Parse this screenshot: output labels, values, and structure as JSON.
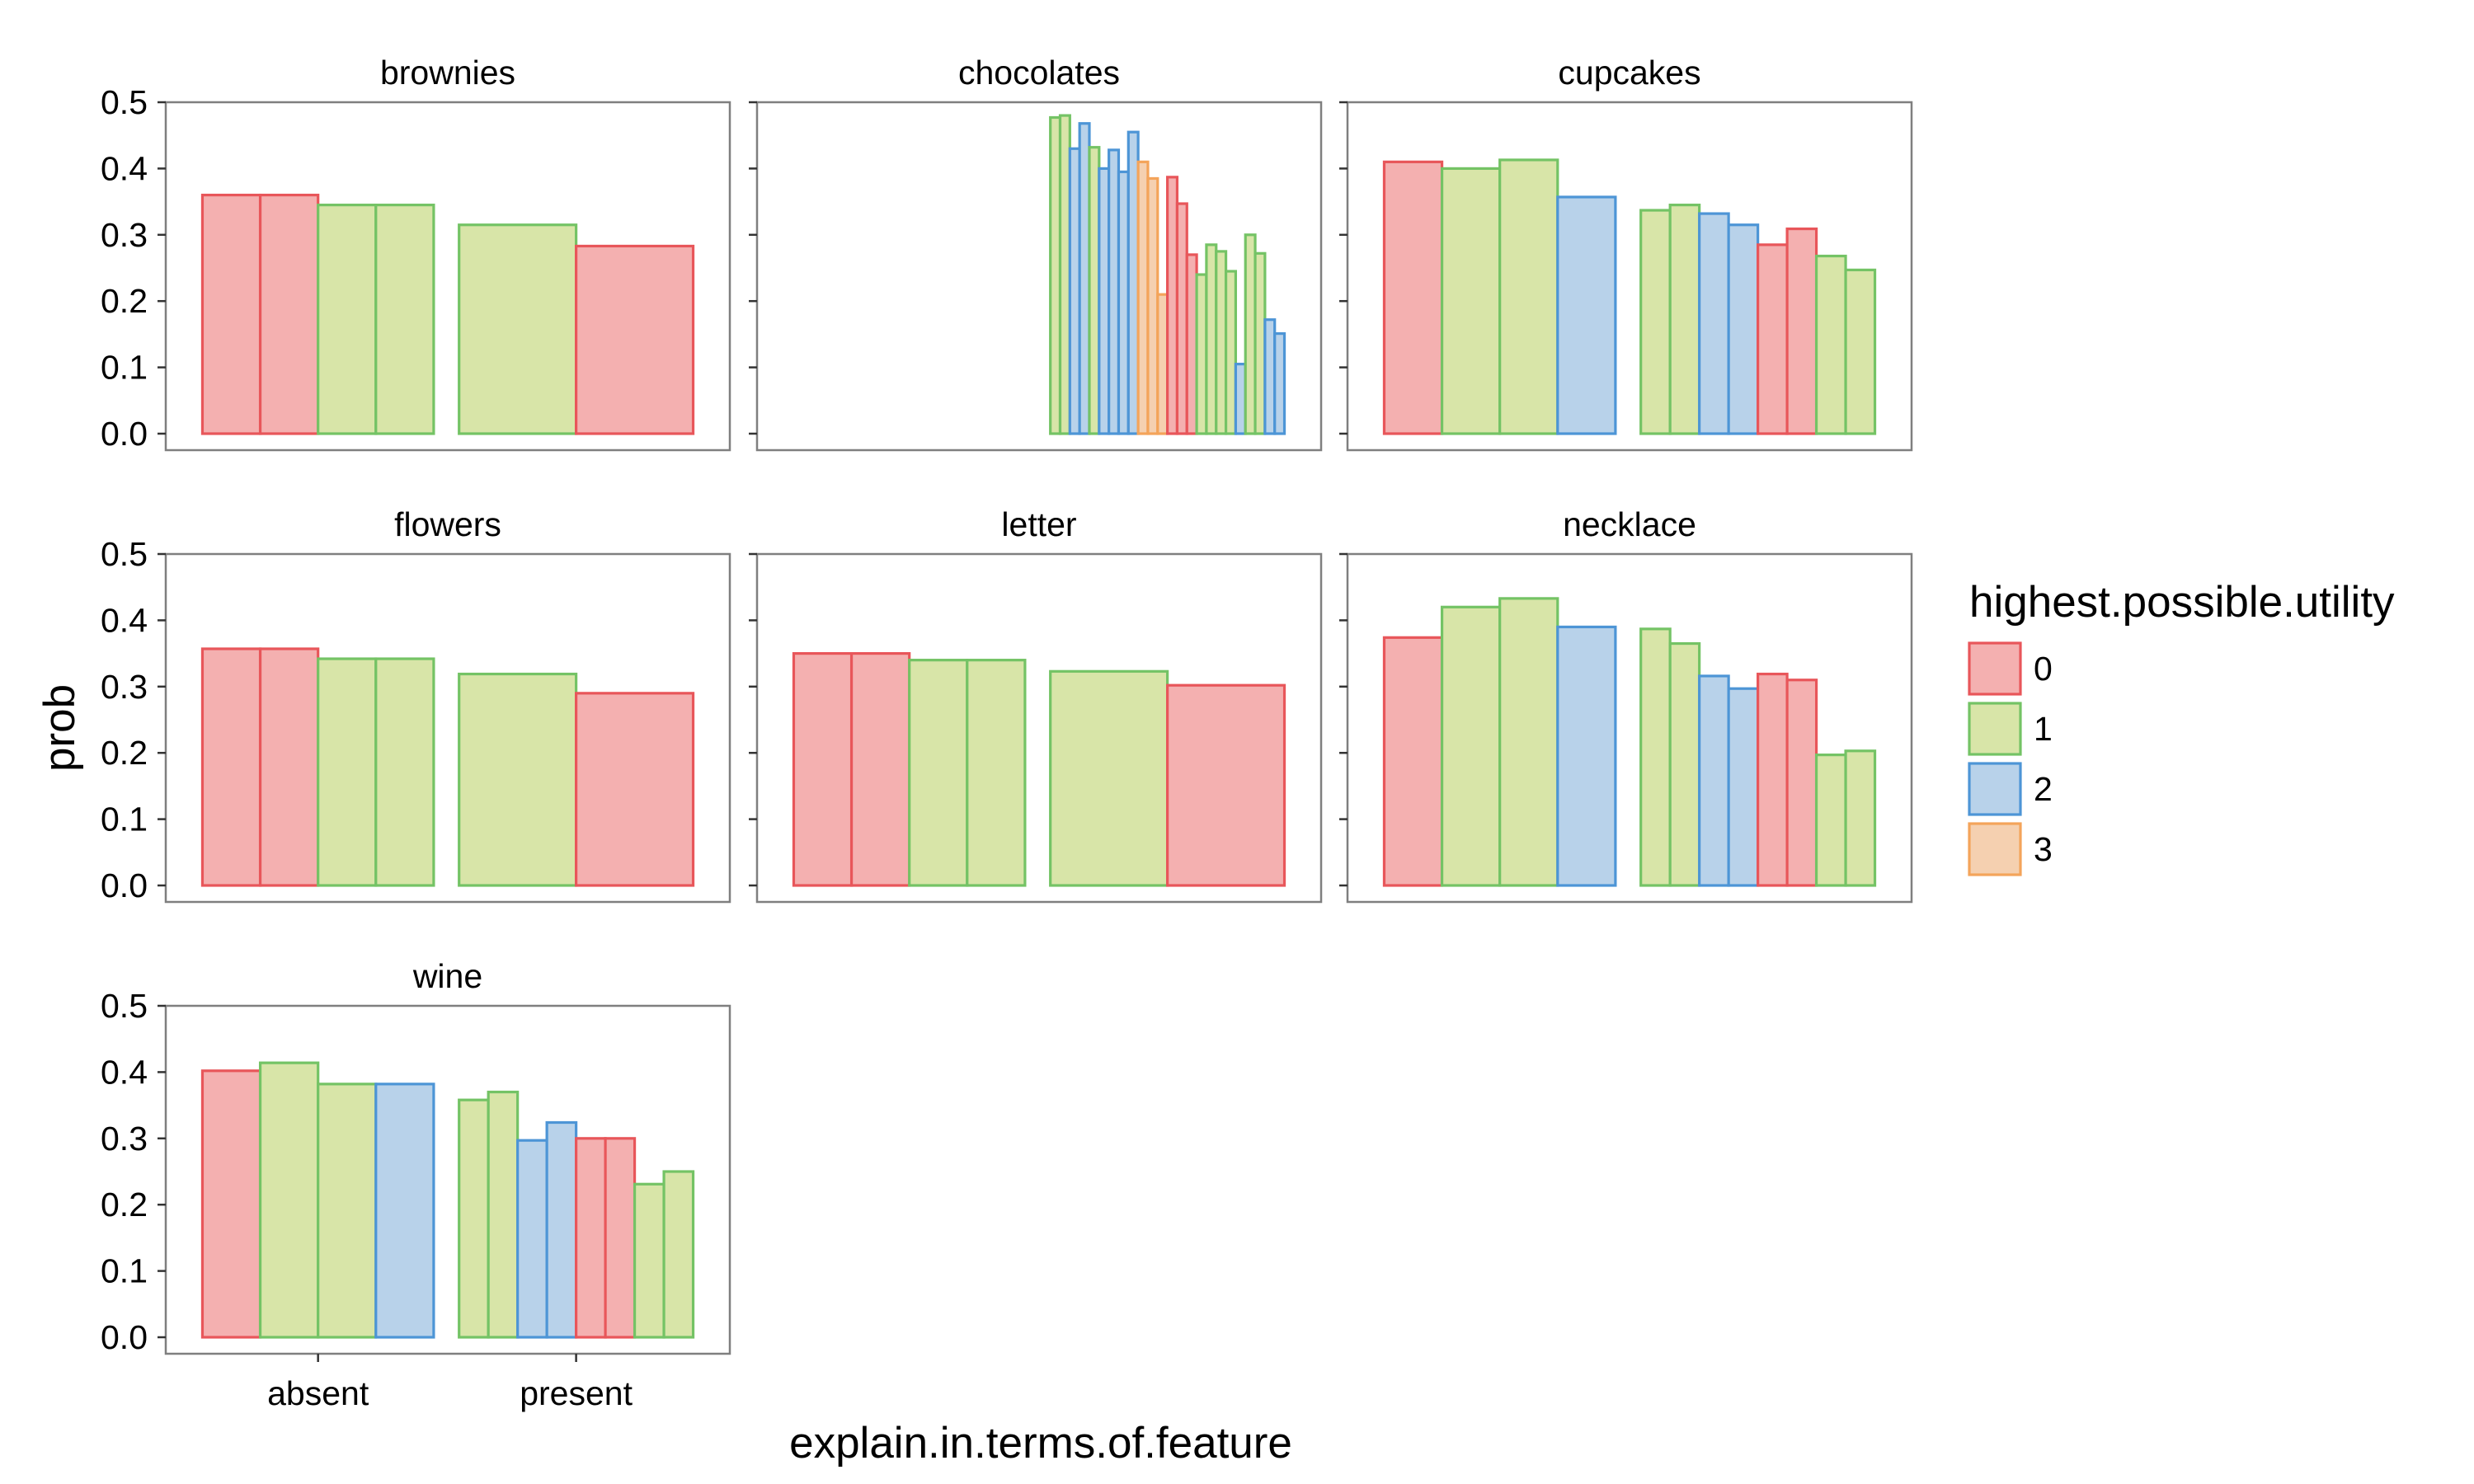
{
  "chart_data": {
    "type": "bar",
    "xlabel": "explain.in.terms.of.feature",
    "ylabel": "prob",
    "x_categories": [
      "absent",
      "present"
    ],
    "ylim": [
      0,
      0.5
    ],
    "y_ticks": [
      "0.0",
      "0.1",
      "0.2",
      "0.3",
      "0.4",
      "0.5"
    ],
    "grid": false,
    "legend": {
      "title": "highest.possible.utility",
      "position": "right",
      "items": [
        {
          "label": "0",
          "fill": "#f4b0b0",
          "stroke": "#e8565a"
        },
        {
          "label": "1",
          "fill": "#d8e5a8",
          "stroke": "#74c365"
        },
        {
          "label": "2",
          "fill": "#b8d2ea",
          "stroke": "#4d95d6"
        },
        {
          "label": "3",
          "fill": "#f5d0b0",
          "stroke": "#f4a45a"
        }
      ]
    },
    "panels": [
      {
        "title": "brownies",
        "absent": [
          {
            "u": 0,
            "v": 0.36
          },
          {
            "u": 0,
            "v": 0.36
          },
          {
            "u": 1,
            "v": 0.345
          },
          {
            "u": 1,
            "v": 0.345
          }
        ],
        "present": [
          {
            "u": 1,
            "v": 0.315
          },
          {
            "u": 0,
            "v": 0.283
          }
        ]
      },
      {
        "title": "chocolates",
        "absent": [],
        "present": [
          {
            "u": 1,
            "v": 0.477
          },
          {
            "u": 1,
            "v": 0.48
          },
          {
            "u": 2,
            "v": 0.43
          },
          {
            "u": 2,
            "v": 0.468
          },
          {
            "u": 1,
            "v": 0.432
          },
          {
            "u": 2,
            "v": 0.4
          },
          {
            "u": 2,
            "v": 0.428
          },
          {
            "u": 2,
            "v": 0.395
          },
          {
            "u": 2,
            "v": 0.455
          },
          {
            "u": 3,
            "v": 0.41
          },
          {
            "u": 3,
            "v": 0.385
          },
          {
            "u": 3,
            "v": 0.21
          },
          {
            "u": 0,
            "v": 0.387
          },
          {
            "u": 0,
            "v": 0.347
          },
          {
            "u": 0,
            "v": 0.27
          },
          {
            "u": 1,
            "v": 0.24
          },
          {
            "u": 1,
            "v": 0.285
          },
          {
            "u": 1,
            "v": 0.275
          },
          {
            "u": 1,
            "v": 0.245
          },
          {
            "u": 2,
            "v": 0.105
          },
          {
            "u": 1,
            "v": 0.3
          },
          {
            "u": 1,
            "v": 0.272
          },
          {
            "u": 2,
            "v": 0.172
          },
          {
            "u": 2,
            "v": 0.151
          }
        ]
      },
      {
        "title": "cupcakes",
        "absent": [
          {
            "u": 0,
            "v": 0.41
          },
          {
            "u": 1,
            "v": 0.4
          },
          {
            "u": 1,
            "v": 0.413
          },
          {
            "u": 2,
            "v": 0.357
          }
        ],
        "present": [
          {
            "u": 1,
            "v": 0.337
          },
          {
            "u": 1,
            "v": 0.345
          },
          {
            "u": 2,
            "v": 0.332
          },
          {
            "u": 2,
            "v": 0.315
          },
          {
            "u": 0,
            "v": 0.285
          },
          {
            "u": 0,
            "v": 0.309
          },
          {
            "u": 1,
            "v": 0.268
          },
          {
            "u": 1,
            "v": 0.247
          }
        ]
      },
      {
        "title": "flowers",
        "absent": [
          {
            "u": 0,
            "v": 0.357
          },
          {
            "u": 0,
            "v": 0.357
          },
          {
            "u": 1,
            "v": 0.342
          },
          {
            "u": 1,
            "v": 0.342
          }
        ],
        "present": [
          {
            "u": 1,
            "v": 0.319
          },
          {
            "u": 0,
            "v": 0.29
          }
        ]
      },
      {
        "title": "letter",
        "absent": [
          {
            "u": 0,
            "v": 0.35
          },
          {
            "u": 0,
            "v": 0.35
          },
          {
            "u": 1,
            "v": 0.34
          },
          {
            "u": 1,
            "v": 0.34
          }
        ],
        "present": [
          {
            "u": 1,
            "v": 0.323
          },
          {
            "u": 0,
            "v": 0.302
          }
        ]
      },
      {
        "title": "necklace",
        "absent": [
          {
            "u": 0,
            "v": 0.374
          },
          {
            "u": 1,
            "v": 0.42
          },
          {
            "u": 1,
            "v": 0.433
          },
          {
            "u": 2,
            "v": 0.39
          }
        ],
        "present": [
          {
            "u": 1,
            "v": 0.387
          },
          {
            "u": 1,
            "v": 0.365
          },
          {
            "u": 2,
            "v": 0.316
          },
          {
            "u": 2,
            "v": 0.297
          },
          {
            "u": 0,
            "v": 0.319
          },
          {
            "u": 0,
            "v": 0.31
          },
          {
            "u": 1,
            "v": 0.197
          },
          {
            "u": 1,
            "v": 0.203
          }
        ]
      },
      {
        "title": "wine",
        "absent": [
          {
            "u": 0,
            "v": 0.402
          },
          {
            "u": 1,
            "v": 0.414
          },
          {
            "u": 1,
            "v": 0.382
          },
          {
            "u": 2,
            "v": 0.382
          }
        ],
        "present": [
          {
            "u": 1,
            "v": 0.358
          },
          {
            "u": 1,
            "v": 0.37
          },
          {
            "u": 2,
            "v": 0.297
          },
          {
            "u": 2,
            "v": 0.324
          },
          {
            "u": 0,
            "v": 0.3
          },
          {
            "u": 0,
            "v": 0.3
          },
          {
            "u": 1,
            "v": 0.231
          },
          {
            "u": 1,
            "v": 0.25
          }
        ]
      }
    ]
  }
}
